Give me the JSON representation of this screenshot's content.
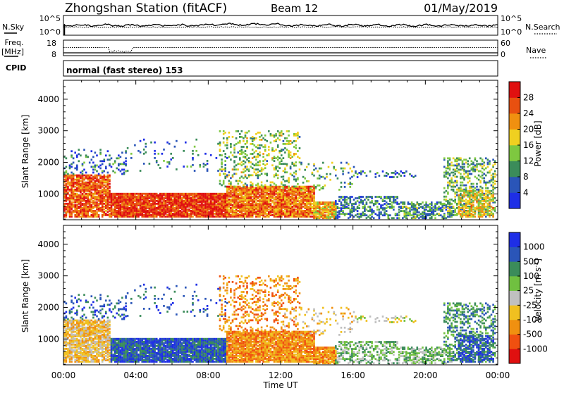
{
  "header": {
    "station": "Zhongshan Station (fitACF)",
    "beam": "Beam 12",
    "date": "01/May/2019"
  },
  "strip1": {
    "left_label": "N.Sky",
    "left_ticks": [
      "10^5",
      "10^0"
    ],
    "right_ticks": [
      "10^5",
      "10^0"
    ],
    "right_label": "N.Search"
  },
  "strip2": {
    "left_label_top": "Freq.",
    "left_label_bottom": "[MHz]",
    "left_ticks": [
      "18",
      "8"
    ],
    "right_ticks": [
      "60",
      "0"
    ],
    "right_label": "Nave"
  },
  "cpid": {
    "label": "CPID",
    "value": "normal (fast stereo) 153"
  },
  "time_axis": {
    "label": "Time UT",
    "ticks": [
      "00:00",
      "04:00",
      "08:00",
      "12:00",
      "16:00",
      "20:00",
      "00:00"
    ]
  },
  "colors": {
    "power_scale": [
      "#1e2ee6",
      "#2a55b8",
      "#3b8c5a",
      "#7ec840",
      "#f0d020",
      "#f09010",
      "#e85010",
      "#e01010"
    ],
    "velocity_scale": [
      "#e01010",
      "#f05010",
      "#f09010",
      "#f0c020",
      "#c0c0c0",
      "#70c040",
      "#3b8c5a",
      "#2a55b8",
      "#1e2ee6"
    ]
  },
  "chart_data": [
    {
      "type": "heatmap",
      "title": "",
      "ylabel": "Slant Range [km]",
      "xlabel": "",
      "y_ticks": [
        1000,
        2000,
        3000,
        4000
      ],
      "ylim": [
        180,
        4600
      ],
      "xlim_hours": [
        0,
        24
      ],
      "colorbar": {
        "label": "Power [dB]",
        "tick_labels": [
          "4",
          "8",
          "12",
          "16",
          "20",
          "24",
          "28"
        ]
      }
    },
    {
      "type": "heatmap",
      "title": "",
      "ylabel": "Slant Range [km]",
      "xlabel": "Time UT",
      "y_ticks": [
        1000,
        2000,
        3000,
        4000
      ],
      "ylim": [
        180,
        4600
      ],
      "xlim_hours": [
        0,
        24
      ],
      "colorbar": {
        "label": "Velocity [m s-1]",
        "tick_labels": [
          "1000",
          "500",
          "100",
          "25",
          "-25",
          "-100",
          "-500",
          "-1000"
        ]
      }
    }
  ]
}
